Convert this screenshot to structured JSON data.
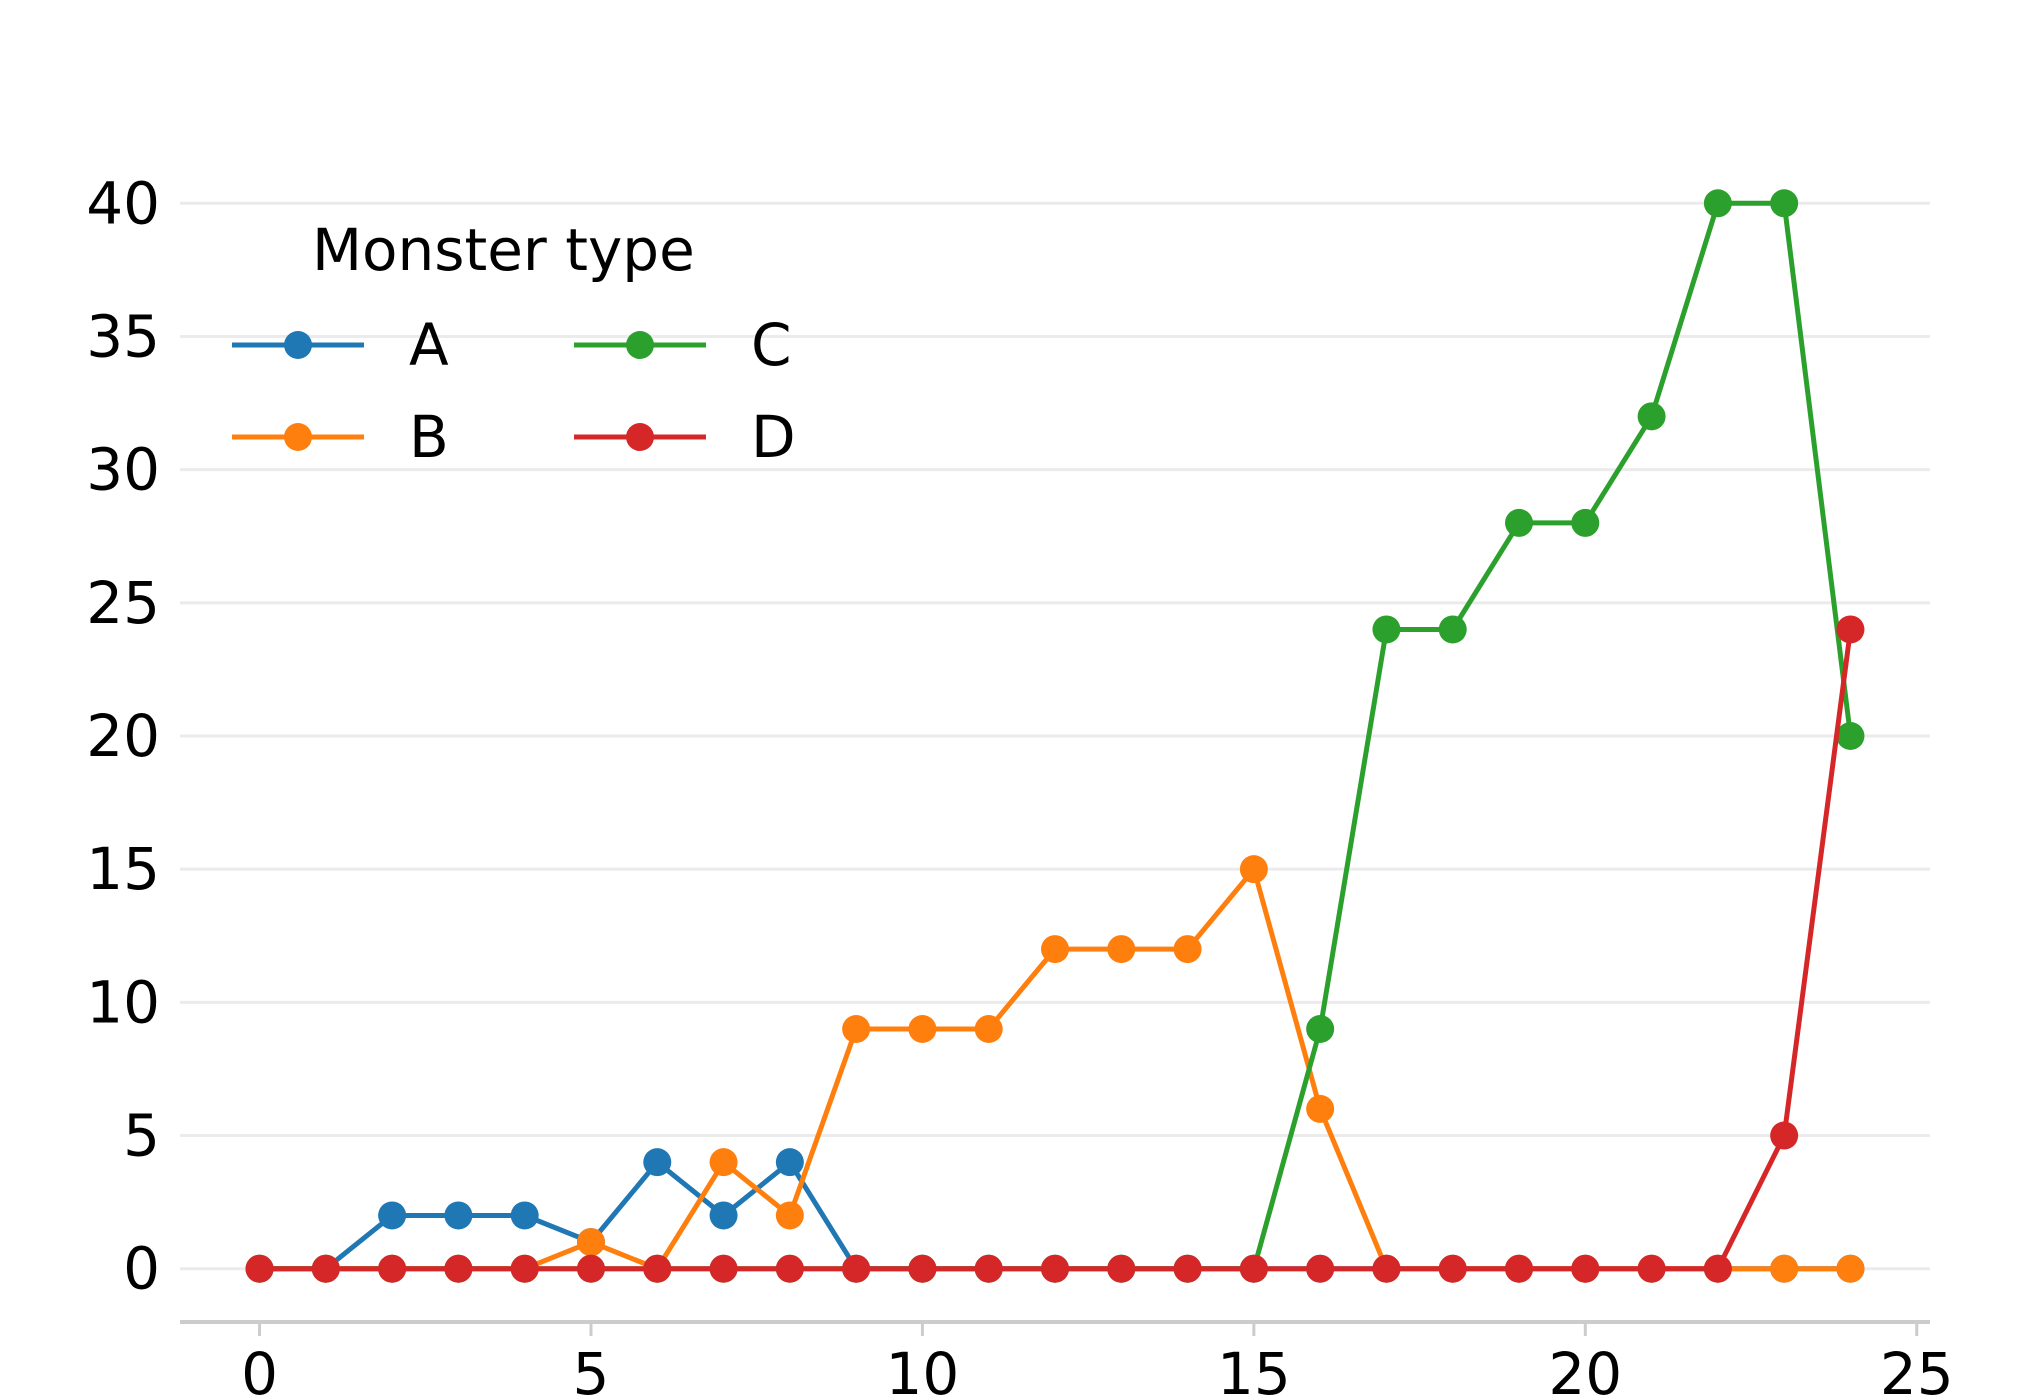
{
  "chart_data": {
    "type": "line",
    "title": "",
    "xlabel": "",
    "ylabel": "",
    "xlim": [
      -1.2,
      25.2
    ],
    "ylim": [
      -2,
      42
    ],
    "x_ticks": [
      0,
      5,
      10,
      15,
      20,
      25
    ],
    "y_ticks": [
      0,
      5,
      10,
      15,
      20,
      25,
      30,
      35,
      40
    ],
    "grid": {
      "y": true,
      "x": false,
      "color": "#ebebeb"
    },
    "legend": {
      "title": "Monster type",
      "placement": "top-left",
      "columns": 2
    },
    "x": [
      0,
      1,
      2,
      3,
      4,
      5,
      6,
      7,
      8,
      9,
      10,
      11,
      12,
      13,
      14,
      15,
      16,
      17,
      18,
      19,
      20,
      21,
      22,
      23,
      24
    ],
    "series": [
      {
        "name": "A",
        "color": "#1f77b4",
        "values": [
          0,
          0,
          2,
          2,
          2,
          1,
          4,
          2,
          4,
          0,
          0,
          0,
          0,
          0,
          0,
          0,
          0,
          0,
          0,
          0,
          0,
          0,
          0,
          0,
          0
        ]
      },
      {
        "name": "B",
        "color": "#ff7f0e",
        "values": [
          0,
          0,
          0,
          0,
          0,
          1,
          0,
          4,
          2,
          9,
          9,
          9,
          12,
          12,
          12,
          15,
          6,
          0,
          0,
          0,
          0,
          0,
          0,
          0,
          0
        ]
      },
      {
        "name": "C",
        "color": "#2ca02c",
        "values": [
          0,
          0,
          0,
          0,
          0,
          0,
          0,
          0,
          0,
          0,
          0,
          0,
          0,
          0,
          0,
          0,
          9,
          24,
          24,
          28,
          28,
          32,
          40,
          40,
          20
        ]
      },
      {
        "name": "D",
        "color": "#d62728",
        "values": [
          0,
          0,
          0,
          0,
          0,
          0,
          0,
          0,
          0,
          0,
          0,
          0,
          0,
          0,
          0,
          0,
          0,
          0,
          0,
          0,
          0,
          0,
          0,
          5,
          24
        ]
      }
    ]
  }
}
